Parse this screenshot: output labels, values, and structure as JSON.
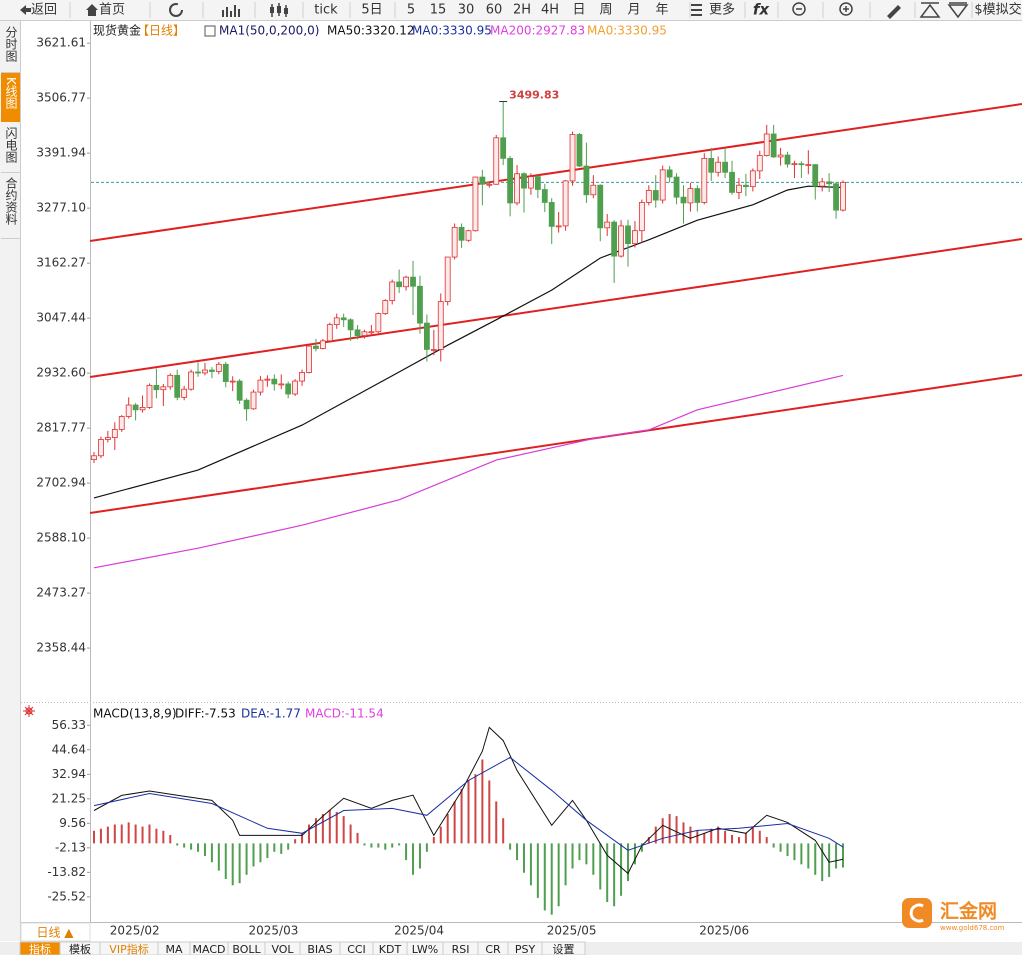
{
  "toolbar": [
    "返回",
    "首页",
    "tick",
    "5日",
    "5",
    "15",
    "30",
    "60",
    "2H",
    "4H",
    "日",
    "周",
    "月",
    "年",
    "更多",
    "fx",
    "$模拟交"
  ],
  "sidebar": [
    "分时图",
    "K线图",
    "闪电图",
    "合约资料"
  ],
  "period_button": "日线 ▲",
  "bottom_tabs": [
    "指标",
    "模板",
    "VIP指标",
    "MA",
    "MACD",
    "BOLL",
    "VOL",
    "BIAS",
    "CCI",
    "KDT",
    "LW%",
    "RSI",
    "CR",
    "PSY",
    "设置"
  ],
  "logo": {
    "name": "汇金网",
    "url": "www.gold678.com"
  },
  "chart_data": [
    {
      "type": "candlestick",
      "title": "现货黄金",
      "period": "【日线】",
      "legend": [
        {
          "text": "MA1(50,0,200,0)",
          "color": "#1a1a60"
        },
        {
          "text": "MA50:3320.12",
          "color": "#111111"
        },
        {
          "text": "MA0:3330.95",
          "color": "#1a2fa0"
        },
        {
          "text": "MA200:2927.83",
          "color": "#e040e0"
        },
        {
          "text": "MA0:3330.95",
          "color": "#f0a030"
        }
      ],
      "up_color": "#e03030",
      "down_color": "#4f9f4f",
      "ylim": [
        2250,
        3670
      ],
      "yticks": [
        3621.61,
        3506.77,
        3391.94,
        {
          "value": 3277.1,
          "label": "3277.10"
        },
        3162.27,
        3047.44,
        {
          "value": 2932.6,
          "label": "2932.60"
        },
        2817.77,
        2702.94,
        {
          "value": 2588.1,
          "label": "2588.10"
        },
        2473.27,
        2358.44
      ],
      "grid": false,
      "price_line": 3330.95,
      "high_label": 3499.83,
      "categories": [
        null,
        null,
        null,
        "2025/02",
        null,
        null,
        null,
        null,
        null,
        null,
        null,
        null,
        null,
        null,
        null,
        null,
        null,
        null,
        null,
        null,
        null,
        null,
        null,
        "2025/03",
        null,
        null,
        null,
        null,
        null,
        null,
        null,
        null,
        null,
        null,
        null,
        null,
        null,
        null,
        null,
        null,
        null,
        null,
        null,
        null,
        "2025/04",
        null,
        null,
        null,
        null,
        null,
        null,
        null,
        null,
        null,
        null,
        null,
        null,
        null,
        null,
        null,
        null,
        null,
        null,
        null,
        null,
        null,
        "2025/05",
        null,
        null,
        null,
        null,
        null,
        null,
        null,
        null,
        null,
        null,
        null,
        null,
        null,
        null,
        null,
        null,
        null,
        null,
        null,
        null,
        null,
        "2025/06",
        null,
        null,
        null,
        null,
        null,
        null,
        null,
        null,
        null,
        null,
        null,
        null,
        null,
        null,
        null,
        null,
        null,
        null,
        null,
        null
      ],
      "candles": [
        [
          2752,
          2768,
          2745,
          2760
        ],
        [
          2760,
          2800,
          2755,
          2794
        ],
        [
          2794,
          2812,
          2788,
          2798
        ],
        [
          2798,
          2830,
          2772,
          2815
        ],
        [
          2815,
          2845,
          2810,
          2842
        ],
        [
          2842,
          2882,
          2838,
          2866
        ],
        [
          2866,
          2870,
          2834,
          2856
        ],
        [
          2856,
          2886,
          2850,
          2861
        ],
        [
          2861,
          2911,
          2858,
          2907
        ],
        [
          2907,
          2942,
          2880,
          2898
        ],
        [
          2898,
          2910,
          2864,
          2904
        ],
        [
          2904,
          2932,
          2898,
          2928
        ],
        [
          2928,
          2940,
          2876,
          2882
        ],
        [
          2882,
          2906,
          2876,
          2899
        ],
        [
          2899,
          2940,
          2896,
          2935
        ],
        [
          2935,
          2955,
          2925,
          2933
        ],
        [
          2933,
          2954,
          2928,
          2939
        ],
        [
          2939,
          2945,
          2922,
          2936
        ],
        [
          2936,
          2956,
          2930,
          2951
        ],
        [
          2951,
          2956,
          2903,
          2915
        ],
        [
          2915,
          2926,
          2895,
          2916
        ],
        [
          2916,
          2920,
          2868,
          2876
        ],
        [
          2876,
          2880,
          2833,
          2858
        ],
        [
          2858,
          2898,
          2856,
          2893
        ],
        [
          2893,
          2927,
          2886,
          2918
        ],
        [
          2918,
          2928,
          2904,
          2920
        ],
        [
          2920,
          2930,
          2896,
          2910
        ],
        [
          2910,
          2930,
          2899,
          2910
        ],
        [
          2910,
          2915,
          2880,
          2889
        ],
        [
          2889,
          2920,
          2885,
          2916
        ],
        [
          2916,
          2940,
          2906,
          2934
        ],
        [
          2934,
          2990,
          2932,
          2989
        ],
        [
          2989,
          3004,
          2978,
          2984
        ],
        [
          2984,
          3004,
          2982,
          3000
        ],
        [
          3000,
          3038,
          2998,
          3034
        ],
        [
          3034,
          3057,
          3025,
          3048
        ],
        [
          3048,
          3057,
          3029,
          3044
        ],
        [
          3044,
          3047,
          3000,
          3023
        ],
        [
          3023,
          3033,
          3003,
          3011
        ],
        [
          3011,
          3023,
          3005,
          3019
        ],
        [
          3019,
          3033,
          3012,
          3019
        ],
        [
          3019,
          3059,
          3016,
          3057
        ],
        [
          3057,
          3087,
          3054,
          3084
        ],
        [
          3084,
          3128,
          3076,
          3123
        ],
        [
          3123,
          3149,
          3100,
          3113
        ],
        [
          3113,
          3136,
          3105,
          3133
        ],
        [
          3133,
          3167,
          3054,
          3114
        ],
        [
          3114,
          3136,
          3015,
          3037
        ],
        [
          3037,
          3055,
          2957,
          2982
        ],
        [
          2982,
          3023,
          2970,
          2982
        ],
        [
          2982,
          3099,
          2957,
          3082
        ],
        [
          3082,
          3175,
          3074,
          3175
        ],
        [
          3175,
          3245,
          3170,
          3237
        ],
        [
          3237,
          3245,
          3194,
          3210
        ],
        [
          3210,
          3232,
          3207,
          3230
        ],
        [
          3230,
          3343,
          3228,
          3342
        ],
        [
          3342,
          3357,
          3283,
          3327
        ],
        [
          3327,
          3331,
          3320,
          3327
        ],
        [
          3327,
          3430,
          3326,
          3424
        ],
        [
          3424,
          3499.83,
          3367,
          3381
        ],
        [
          3381,
          3386,
          3260,
          3288
        ],
        [
          3288,
          3367,
          3283,
          3349
        ],
        [
          3349,
          3352,
          3268,
          3319
        ],
        [
          3319,
          3350,
          3305,
          3343
        ],
        [
          3343,
          3346,
          3298,
          3316
        ],
        [
          3316,
          3328,
          3269,
          3289
        ],
        [
          3289,
          3298,
          3202,
          3239
        ],
        [
          3239,
          3269,
          3226,
          3240
        ],
        [
          3240,
          3336,
          3230,
          3334
        ],
        [
          3334,
          3437,
          3324,
          3431
        ],
        [
          3431,
          3434,
          3363,
          3365
        ],
        [
          3365,
          3414,
          3288,
          3305
        ],
        [
          3305,
          3346,
          3298,
          3325
        ],
        [
          3325,
          3327,
          3208,
          3236
        ],
        [
          3236,
          3265,
          3219,
          3248
        ],
        [
          3248,
          3252,
          3121,
          3177
        ],
        [
          3177,
          3252,
          3174,
          3240
        ],
        [
          3240,
          3253,
          3155,
          3203
        ],
        [
          3203,
          3250,
          3195,
          3230
        ],
        [
          3230,
          3295,
          3205,
          3289
        ],
        [
          3289,
          3325,
          3283,
          3314
        ],
        [
          3314,
          3346,
          3278,
          3294
        ],
        [
          3294,
          3366,
          3287,
          3357
        ],
        [
          3357,
          3365,
          3331,
          3342
        ],
        [
          3342,
          3350,
          3285,
          3300
        ],
        [
          3300,
          3325,
          3245,
          3288
        ],
        [
          3288,
          3330,
          3270,
          3318
        ],
        [
          3318,
          3325,
          3270,
          3289
        ],
        [
          3289,
          3392,
          3285,
          3381
        ],
        [
          3381,
          3403,
          3334,
          3352
        ],
        [
          3352,
          3385,
          3343,
          3373
        ],
        [
          3373,
          3403,
          3340,
          3352
        ],
        [
          3352,
          3376,
          3305,
          3310
        ],
        [
          3310,
          3340,
          3296,
          3325
        ],
        [
          3325,
          3349,
          3302,
          3322
        ],
        [
          3322,
          3360,
          3312,
          3355
        ],
        [
          3355,
          3397,
          3338,
          3387
        ],
        [
          3387,
          3451,
          3385,
          3432
        ],
        [
          3432,
          3451,
          3382,
          3384
        ],
        [
          3384,
          3403,
          3366,
          3388
        ],
        [
          3388,
          3395,
          3362,
          3369
        ],
        [
          3369,
          3376,
          3340,
          3370
        ],
        [
          3370,
          3375,
          3340,
          3368
        ],
        [
          3368,
          3398,
          3348,
          3368
        ],
        [
          3368,
          3369,
          3295,
          3323
        ],
        [
          3323,
          3340,
          3312,
          3332
        ],
        [
          3332,
          3350,
          3311,
          3328
        ],
        [
          3328,
          3331,
          3255,
          3273
        ],
        [
          3273,
          3335,
          3270,
          3330.95
        ]
      ],
      "lines": [
        {
          "color": "#111111",
          "x": [
            0,
            15,
            30,
            44,
            51,
            58,
            66,
            73,
            80,
            87,
            95,
            100,
            103,
            108
          ],
          "values": [
            2672,
            2730,
            2824,
            2935,
            2991,
            3044,
            3106,
            3173,
            3211,
            3252,
            3284,
            3315,
            3323,
            3320.12
          ]
        },
        {
          "color": "#d83cd8",
          "x": [
            0,
            15,
            30,
            44,
            58,
            73,
            80,
            87,
            108
          ],
          "values": [
            2526,
            2567,
            2615,
            2668,
            2751,
            2799,
            2814,
            2856,
            2927.83
          ]
        }
      ]
    },
    {
      "type": "macd",
      "legend": [
        {
          "text": "MACD(13,8,9)",
          "color": "#111111"
        },
        {
          "text": "DIFF:-7.53",
          "color": "#111111"
        },
        {
          "text": "DEA:-1.77",
          "color": "#1a2fa0"
        },
        {
          "text": "MACD:-11.54",
          "color": "#e040e0"
        }
      ],
      "ylim": [
        -37.5,
        66
      ],
      "yticks": [
        56.33,
        44.64,
        32.94,
        21.25,
        9.56,
        -2.13,
        -13.82,
        -25.52
      ],
      "up_color": "#d04545",
      "down_color": "#4f9f4f",
      "histogram": [
        6,
        7,
        8,
        9,
        9,
        10,
        9,
        8,
        9,
        7,
        6,
        4,
        -1,
        -2,
        -3,
        -4,
        -6,
        -9,
        -13,
        -17,
        -20,
        -19,
        -15,
        -11,
        -9,
        -7,
        -4,
        -5,
        -3,
        2,
        5,
        9,
        12,
        14,
        16,
        15,
        13,
        9,
        5,
        -1,
        -2,
        -2,
        -3,
        -2,
        -1,
        -8,
        -15,
        -12,
        -4,
        3,
        8,
        14,
        20,
        26,
        30,
        33,
        40,
        30,
        20,
        12,
        -3,
        -8,
        -14,
        -20,
        -26,
        -32,
        -34,
        -30,
        -20,
        -12,
        -8,
        -10,
        -15,
        -22,
        -28,
        -30,
        -25,
        -18,
        -10,
        -4,
        3,
        8,
        12,
        14,
        13,
        10,
        8,
        6,
        5,
        7,
        8,
        6,
        4,
        3,
        5,
        8,
        6,
        3,
        -2,
        -4,
        -6,
        -8,
        -10,
        -12,
        -15,
        -18,
        -16,
        -12,
        -11.54
      ],
      "lines": [
        {
          "color": "#111111",
          "x": [
            0,
            4,
            8,
            12,
            17,
            20,
            21,
            25,
            30,
            33,
            36,
            40,
            43,
            46,
            49,
            53,
            56,
            57,
            59,
            61,
            66,
            69,
            71,
            74,
            77,
            79,
            82,
            86,
            90,
            94,
            97,
            100,
            104,
            106,
            108
          ],
          "values": [
            15.7,
            22.9,
            25,
            23,
            20.5,
            11,
            3.8,
            3.8,
            3.8,
            13,
            21.5,
            16.7,
            20.5,
            23,
            3.8,
            25,
            44,
            55.3,
            49,
            34.8,
            8.6,
            20.5,
            11,
            -5.7,
            -14.3,
            -1,
            8.6,
            2.4,
            7.2,
            4.8,
            13.4,
            10,
            1.4,
            -9,
            -7.53
          ]
        },
        {
          "color": "#1a2fa0",
          "x": [
            0,
            8,
            17,
            25,
            30,
            36,
            43,
            48,
            54,
            60,
            66,
            71,
            77,
            82,
            87,
            93,
            100,
            106,
            108
          ],
          "values": [
            18,
            23.8,
            19,
            7.2,
            4.8,
            15.7,
            16.7,
            13.4,
            30,
            41,
            25.3,
            11,
            -3.3,
            2.4,
            6.2,
            7.2,
            9.5,
            2.4,
            -1.77
          ]
        }
      ]
    }
  ]
}
